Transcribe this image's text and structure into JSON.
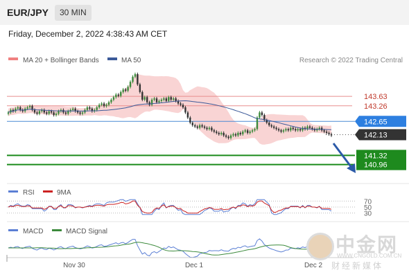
{
  "header": {
    "pair": "EUR/JPY",
    "timeframe": "30 MIN"
  },
  "timestamp": "Friday, December 2, 2022 4:38:43 AM CET",
  "legend": {
    "bb": "MA 20 + Bollinger Bands",
    "ma50": "MA 50"
  },
  "credit": "Research © 2022 Trading Central",
  "colors": {
    "ma50": "#3c5a99",
    "bollinger": "#f7c6c6",
    "bull": "#3c8a3c",
    "bear": "#333333",
    "support": "#1a8a1a",
    "resistance": "#e88d8d",
    "pivot": "#4a8ad4",
    "current": "#333333"
  },
  "watermark": {
    "cn": "中金网",
    "url": "WWW.CNGOLD.COM.CN",
    "sub": "财经新媒体"
  },
  "chart_data": {
    "type": "candlestick",
    "price_range": [
      140.3,
      144.8
    ],
    "levels": [
      {
        "value": 143.63,
        "label": "143.63",
        "kind": "resistance"
      },
      {
        "value": 143.26,
        "label": "143.26",
        "kind": "resistance"
      },
      {
        "value": 142.65,
        "label": "142.65",
        "kind": "pivot"
      },
      {
        "value": 142.13,
        "label": "142.13",
        "kind": "current"
      },
      {
        "value": 141.32,
        "label": "141.32",
        "kind": "support"
      },
      {
        "value": 140.96,
        "label": "140.96",
        "kind": "support"
      }
    ],
    "x_ticks": [
      "Nov 30",
      "Dec 1",
      "Dec 2"
    ],
    "close": [
      143.0,
      143.1,
      143.05,
      143.15,
      143.2,
      143.1,
      143.05,
      143.15,
      143.2,
      143.25,
      143.1,
      143.0,
      142.95,
      143.05,
      143.1,
      143.0,
      142.95,
      143.05,
      143.0,
      142.9,
      142.95,
      143.05,
      143.1,
      143.0,
      142.95,
      143.05,
      143.1,
      143.15,
      143.05,
      143.0,
      142.95,
      143.0,
      143.1,
      143.2,
      143.15,
      143.05,
      143.1,
      143.2,
      143.3,
      143.35,
      143.25,
      143.3,
      143.4,
      143.5,
      143.6,
      143.7,
      143.65,
      143.8,
      143.9,
      143.85,
      144.0,
      144.2,
      144.4,
      144.5,
      144.1,
      143.8,
      143.5,
      143.6,
      143.4,
      143.3,
      143.5,
      143.55,
      143.4,
      143.45,
      143.5,
      143.55,
      143.45,
      143.6,
      143.5,
      143.55,
      143.45,
      143.35,
      143.3,
      143.2,
      143.0,
      142.8,
      142.6,
      142.5,
      142.45,
      142.4,
      142.5,
      142.45,
      142.4,
      142.35,
      142.4,
      142.3,
      142.25,
      142.2,
      142.15,
      142.2,
      142.1,
      142.05,
      142.0,
      142.1,
      142.15,
      142.1,
      142.2,
      142.15,
      142.25,
      142.3,
      142.2,
      142.25,
      142.3,
      142.35,
      142.8,
      143.0,
      142.9,
      142.7,
      142.6,
      142.5,
      142.45,
      142.4,
      142.35,
      142.3,
      142.25,
      142.3,
      142.35,
      142.3,
      142.4,
      142.35,
      142.3,
      142.35,
      142.3,
      142.4,
      142.35,
      142.45,
      142.4,
      142.35,
      142.3,
      142.35,
      142.4,
      142.3,
      142.25,
      142.2,
      142.15,
      142.1
    ],
    "rsi": {
      "legend": [
        "RSI",
        "9MA"
      ],
      "ticks": [
        70,
        50,
        30
      ]
    },
    "macd": {
      "legend": [
        "MACD",
        "MACD Signal"
      ]
    }
  }
}
